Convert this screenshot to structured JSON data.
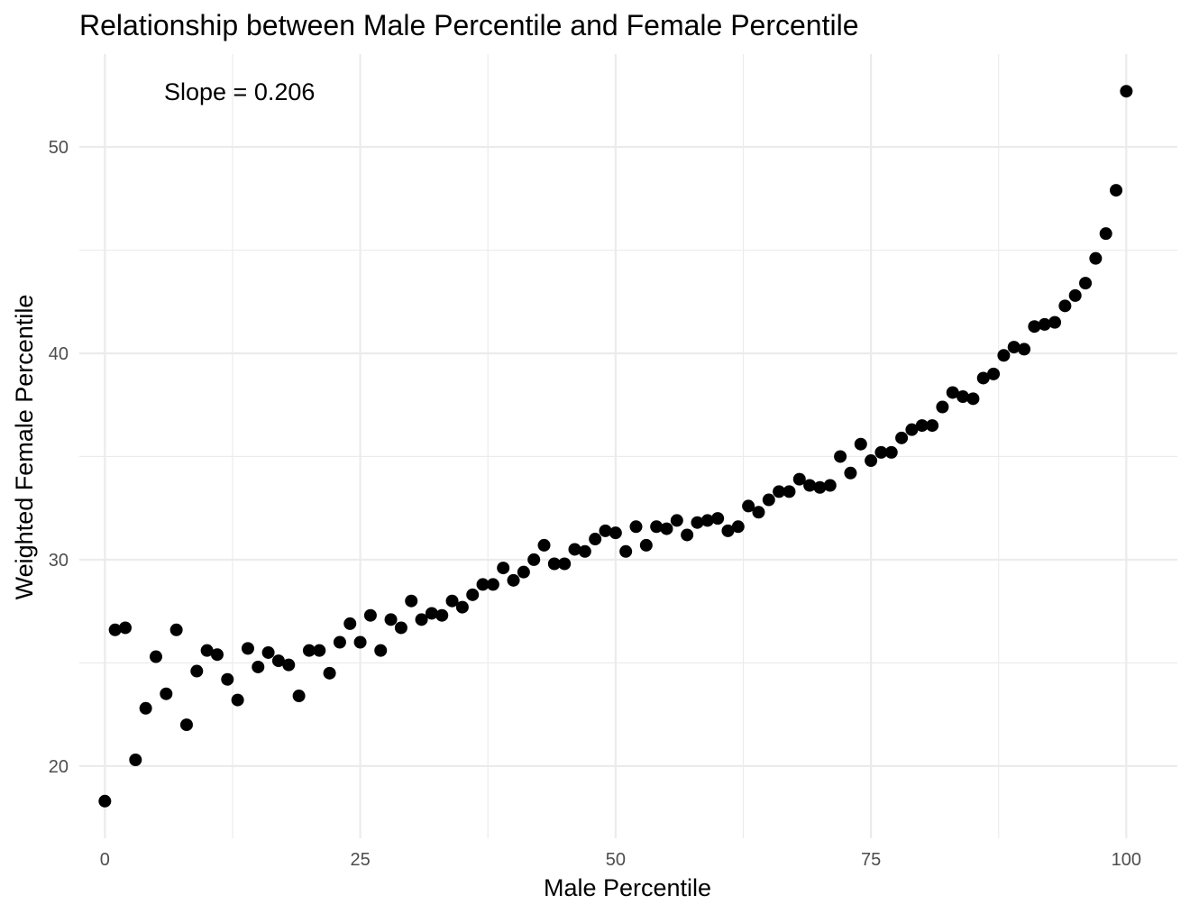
{
  "chart_data": {
    "type": "scatter",
    "title": "Relationship between Male Percentile and Female Percentile",
    "xlabel": "Male Percentile",
    "ylabel": "Weighted Female Percentile",
    "annotation": "Slope = 0.206",
    "xlim": [
      -2.5,
      105
    ],
    "ylim": [
      16.5,
      54.5
    ],
    "x_ticks": [
      0,
      25,
      50,
      75,
      100
    ],
    "x_tick_labels": [
      "0",
      "25",
      "50",
      "75",
      "100"
    ],
    "y_ticks": [
      20,
      30,
      40,
      50
    ],
    "y_tick_labels": [
      "20",
      "30",
      "40",
      "50"
    ],
    "x_minor_ticks": [
      12.5,
      37.5,
      62.5,
      87.5
    ],
    "y_minor_ticks": [
      25,
      35,
      45
    ],
    "grid": true,
    "legend": "none",
    "point_color": "#000000",
    "series": [
      {
        "x": [
          0,
          1,
          2,
          3,
          4,
          5,
          6,
          7,
          8,
          9,
          10,
          11,
          12,
          13,
          14,
          15,
          16,
          17,
          18,
          19,
          20,
          21,
          22,
          23,
          24,
          25,
          26,
          27,
          28,
          29,
          30,
          31,
          32,
          33,
          34,
          35,
          36,
          37,
          38,
          39,
          40,
          41,
          42,
          43,
          44,
          45,
          46,
          47,
          48,
          49,
          50,
          51,
          52,
          53,
          54,
          55,
          56,
          57,
          58,
          59,
          60,
          61,
          62,
          63,
          64,
          65,
          66,
          67,
          68,
          69,
          70,
          71,
          72,
          73,
          74,
          75,
          76,
          77,
          78,
          79,
          80,
          81,
          82,
          83,
          84,
          85,
          86,
          87,
          88,
          89,
          90,
          91,
          92,
          93,
          94,
          95,
          96,
          97,
          98,
          99,
          100
        ],
        "y": [
          18.3,
          26.6,
          26.7,
          20.3,
          22.8,
          25.3,
          23.5,
          26.6,
          22.0,
          24.6,
          25.6,
          25.4,
          24.2,
          23.2,
          25.7,
          24.8,
          25.5,
          25.1,
          24.9,
          23.4,
          25.6,
          25.6,
          24.5,
          26.0,
          26.9,
          26.0,
          27.3,
          25.6,
          27.1,
          26.7,
          28.0,
          27.1,
          27.4,
          27.3,
          28.0,
          27.7,
          28.3,
          28.8,
          28.8,
          29.6,
          29.0,
          29.4,
          30.0,
          30.7,
          29.8,
          29.8,
          30.5,
          30.4,
          31.0,
          31.4,
          31.3,
          30.4,
          31.6,
          30.7,
          31.6,
          31.5,
          31.9,
          31.2,
          31.8,
          31.9,
          32.0,
          31.4,
          31.6,
          32.6,
          32.3,
          32.9,
          33.3,
          33.3,
          33.9,
          33.6,
          33.5,
          33.6,
          35.0,
          34.2,
          35.6,
          34.8,
          35.2,
          35.2,
          35.9,
          36.3,
          36.5,
          36.5,
          37.4,
          38.1,
          37.9,
          37.8,
          38.8,
          39.0,
          39.9,
          40.3,
          40.2,
          41.3,
          41.4,
          41.5,
          42.3,
          42.8,
          43.4,
          44.6,
          45.8,
          47.9,
          52.7
        ]
      }
    ]
  }
}
